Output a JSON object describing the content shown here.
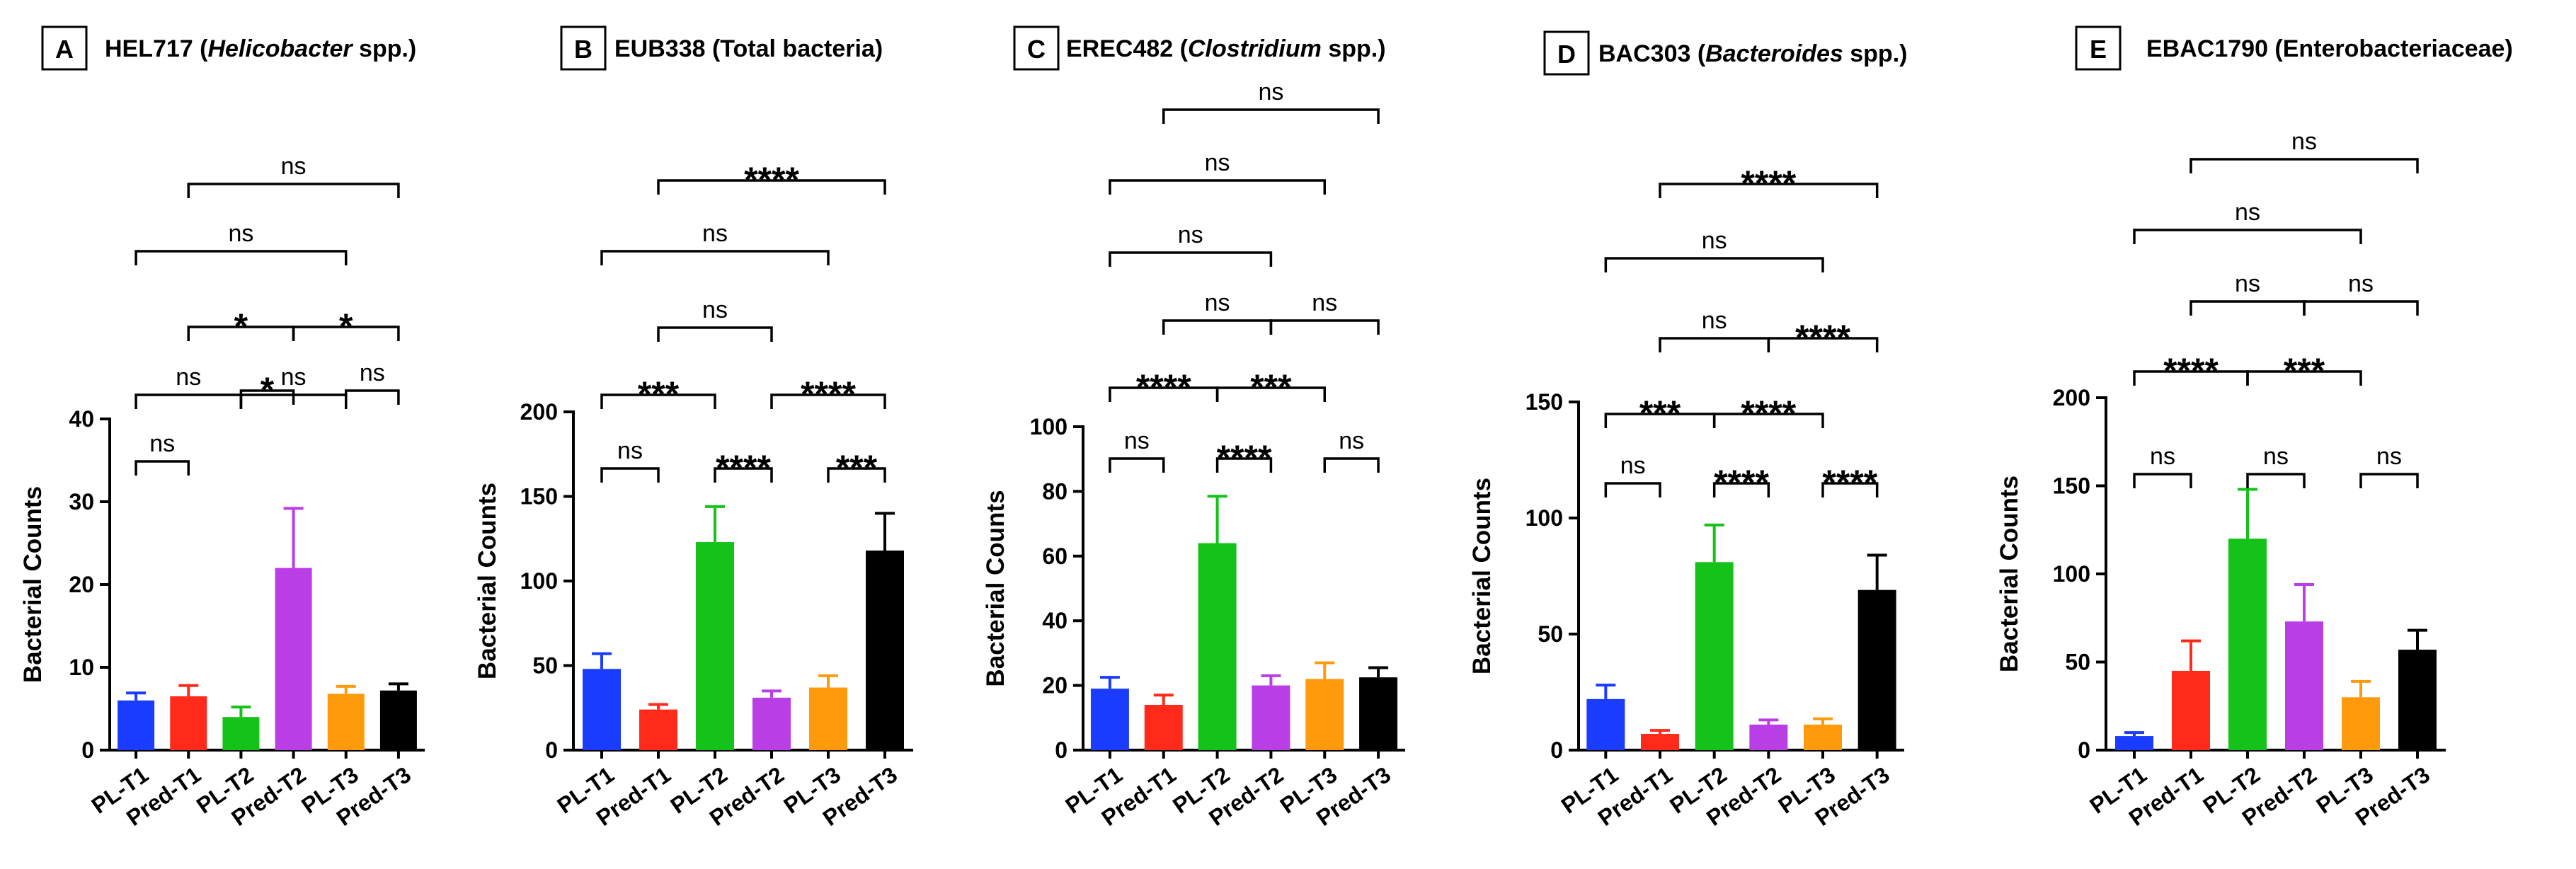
{
  "chart_data": [
    {
      "type": "bar",
      "panel_letter": "A",
      "title_parts": [
        {
          "text": "HEL717 ("
        },
        {
          "text": "Helicobacter",
          "italic": true
        },
        {
          "text": " spp.)"
        }
      ],
      "ylabel": "Bacterial Counts",
      "ylim": [
        0,
        40
      ],
      "yticks": [
        0,
        10,
        20,
        30,
        40
      ],
      "categories": [
        "PL-T1",
        "Pred-T1",
        "PL-T2",
        "Pred-T2",
        "PL-T3",
        "Pred-T3"
      ],
      "values": [
        6,
        6.5,
        4,
        22,
        6.8,
        7.2
      ],
      "errors": [
        0.9,
        1.3,
        1.2,
        7.2,
        0.9,
        0.8
      ],
      "colors": [
        "#1a3cff",
        "#ff2a1a",
        "#15c21a",
        "#b93ee6",
        "#ff9a0d",
        "#000000"
      ],
      "comparisons": [
        {
          "a": 0,
          "b": 1,
          "label": "ns"
        },
        {
          "a": 2,
          "b": 3,
          "label": "*"
        },
        {
          "a": 4,
          "b": 5,
          "label": "ns"
        },
        {
          "a": 0,
          "b": 2,
          "label": "ns"
        },
        {
          "a": 2,
          "b": 4,
          "label": "ns"
        },
        {
          "a": 1,
          "b": 3,
          "label": "*"
        },
        {
          "a": 3,
          "b": 5,
          "label": "*"
        },
        {
          "a": 0,
          "b": 4,
          "label": "ns"
        },
        {
          "a": 1,
          "b": 5,
          "label": "ns"
        }
      ]
    },
    {
      "type": "bar",
      "panel_letter": "B",
      "title_parts": [
        {
          "text": "EUB338 (Total bacteria)"
        }
      ],
      "ylabel": "Bacterial Counts",
      "ylim": [
        0,
        200
      ],
      "yticks": [
        0,
        50,
        100,
        150,
        200
      ],
      "categories": [
        "PL-T1",
        "Pred-T1",
        "PL-T2",
        "Pred-T2",
        "PL-T3",
        "Pred-T3"
      ],
      "values": [
        48,
        24,
        123,
        31,
        37,
        118
      ],
      "errors": [
        9,
        3,
        21,
        4,
        7,
        22
      ],
      "colors": [
        "#1a3cff",
        "#ff2a1a",
        "#15c21a",
        "#b93ee6",
        "#ff9a0d",
        "#000000"
      ],
      "comparisons": [
        {
          "a": 0,
          "b": 1,
          "label": "ns"
        },
        {
          "a": 2,
          "b": 3,
          "label": "****"
        },
        {
          "a": 4,
          "b": 5,
          "label": "***"
        },
        {
          "a": 0,
          "b": 2,
          "label": "***"
        },
        {
          "a": 3,
          "b": 5,
          "label": "****"
        },
        {
          "a": 1,
          "b": 3,
          "label": "ns"
        },
        {
          "a": 0,
          "b": 4,
          "label": "ns"
        },
        {
          "a": 1,
          "b": 5,
          "label": "****"
        }
      ]
    },
    {
      "type": "bar",
      "panel_letter": "C",
      "title_parts": [
        {
          "text": "EREC482 ("
        },
        {
          "text": "Clostridium",
          "italic": true
        },
        {
          "text": " spp.)"
        }
      ],
      "ylabel": "Bacterial Counts",
      "ylim": [
        0,
        100
      ],
      "yticks": [
        0,
        20,
        40,
        60,
        80,
        100
      ],
      "categories": [
        "PL-T1",
        "Pred-T1",
        "PL-T2",
        "Pred-T2",
        "PL-T3",
        "Pred-T3"
      ],
      "values": [
        19,
        14,
        64,
        20,
        22,
        22.5
      ],
      "errors": [
        3.5,
        3,
        14.5,
        3,
        5,
        3
      ],
      "colors": [
        "#1a3cff",
        "#ff2a1a",
        "#15c21a",
        "#b93ee6",
        "#ff9a0d",
        "#000000"
      ],
      "comparisons": [
        {
          "a": 0,
          "b": 1,
          "label": "ns"
        },
        {
          "a": 2,
          "b": 3,
          "label": "****"
        },
        {
          "a": 4,
          "b": 5,
          "label": "ns"
        },
        {
          "a": 0,
          "b": 2,
          "label": "****"
        },
        {
          "a": 2,
          "b": 4,
          "label": "***"
        },
        {
          "a": 1,
          "b": 3,
          "label": "ns"
        },
        {
          "a": 3,
          "b": 5,
          "label": "ns"
        },
        {
          "a": 0,
          "b": 3,
          "label": "ns"
        },
        {
          "a": 0,
          "b": 4,
          "label": "ns"
        },
        {
          "a": 1,
          "b": 5,
          "label": "ns"
        }
      ]
    },
    {
      "type": "bar",
      "panel_letter": "D",
      "title_parts": [
        {
          "text": "BAC303 ("
        },
        {
          "text": "Bacteroides",
          "italic": true
        },
        {
          "text": " spp.)"
        }
      ],
      "ylabel": "Bacterial Counts",
      "ylim": [
        0,
        150
      ],
      "yticks": [
        0,
        50,
        100,
        150
      ],
      "categories": [
        "PL-T1",
        "Pred-T1",
        "PL-T2",
        "Pred-T2",
        "PL-T3",
        "Pred-T3"
      ],
      "values": [
        22,
        7,
        81,
        11,
        11,
        69
      ],
      "errors": [
        6,
        1.5,
        16,
        2,
        2.5,
        15
      ],
      "colors": [
        "#1a3cff",
        "#ff2a1a",
        "#15c21a",
        "#b93ee6",
        "#ff9a0d",
        "#000000"
      ],
      "comparisons": [
        {
          "a": 0,
          "b": 1,
          "label": "ns"
        },
        {
          "a": 2,
          "b": 3,
          "label": "****"
        },
        {
          "a": 4,
          "b": 5,
          "label": "****"
        },
        {
          "a": 0,
          "b": 2,
          "label": "***"
        },
        {
          "a": 2,
          "b": 4,
          "label": "****"
        },
        {
          "a": 1,
          "b": 3,
          "label": "ns"
        },
        {
          "a": 3,
          "b": 5,
          "label": "****"
        },
        {
          "a": 0,
          "b": 4,
          "label": "ns"
        },
        {
          "a": 1,
          "b": 5,
          "label": "****"
        }
      ]
    },
    {
      "type": "bar",
      "panel_letter": "E",
      "title_parts": [
        {
          "text": "EBAC1790 (Enterobacteriaceae)"
        }
      ],
      "ylabel": "Bacterial Counts",
      "ylim": [
        0,
        200
      ],
      "yticks": [
        0,
        50,
        100,
        150,
        200
      ],
      "categories": [
        "PL-T1",
        "Pred-T1",
        "PL-T2",
        "Pred-T2",
        "PL-T3",
        "Pred-T3"
      ],
      "values": [
        8,
        45,
        120,
        73,
        30,
        57
      ],
      "errors": [
        2,
        17,
        28,
        21,
        9,
        11
      ],
      "colors": [
        "#1a3cff",
        "#ff2a1a",
        "#15c21a",
        "#b93ee6",
        "#ff9a0d",
        "#000000"
      ],
      "comparisons": [
        {
          "a": 0,
          "b": 1,
          "label": "ns"
        },
        {
          "a": 2,
          "b": 3,
          "label": "ns"
        },
        {
          "a": 4,
          "b": 5,
          "label": "ns"
        },
        {
          "a": 0,
          "b": 2,
          "label": "****"
        },
        {
          "a": 2,
          "b": 4,
          "label": "***"
        },
        {
          "a": 1,
          "b": 3,
          "label": "ns"
        },
        {
          "a": 3,
          "b": 5,
          "label": "ns"
        },
        {
          "a": 0,
          "b": 4,
          "label": "ns"
        },
        {
          "a": 1,
          "b": 5,
          "label": "ns"
        }
      ]
    }
  ]
}
